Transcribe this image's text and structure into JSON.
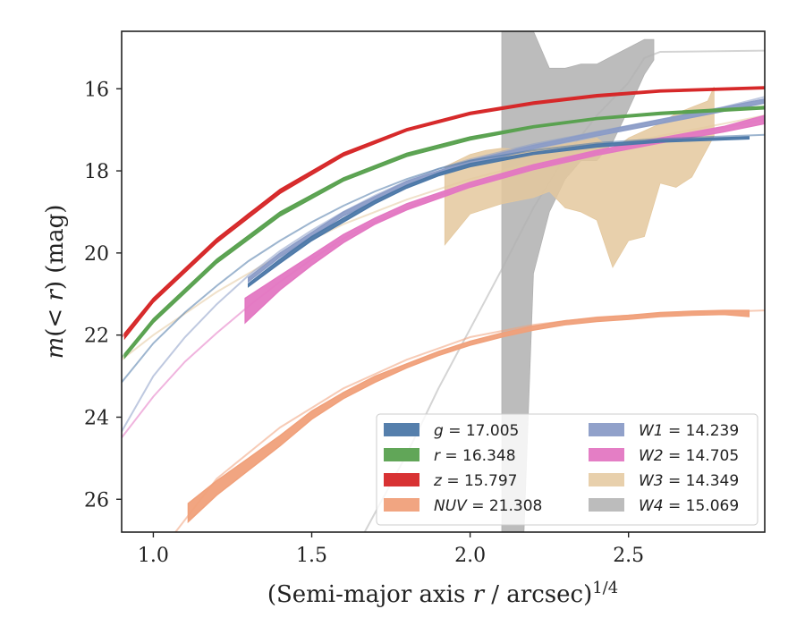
{
  "chart_data": {
    "type": "line",
    "title": "",
    "xlabel": "(Semi-major axis r / arcsec)",
    "xlabel_parts": {
      "pre": "(Semi-major axis ",
      "var": "r",
      "post": " / arcsec)",
      "sup": "1/4"
    },
    "ylabel": "m(< r) (mag)",
    "ylabel_parts": {
      "m": "m",
      "open": "(",
      "lt": "< ",
      "r": "r",
      "close": ")",
      "unit": " (mag)"
    },
    "xlim": [
      0.9,
      2.93
    ],
    "ylim": [
      26.8,
      14.6
    ],
    "y_inverted": true,
    "xticks": [
      1.0,
      1.5,
      2.0,
      2.5
    ],
    "xtick_labels": [
      "1.0",
      "1.5",
      "2.0",
      "2.5"
    ],
    "yticks": [
      16,
      18,
      20,
      22,
      24,
      26
    ],
    "ytick_labels": [
      "16",
      "18",
      "20",
      "22",
      "24",
      "26"
    ],
    "grid": false,
    "legend_position": "lower-right",
    "legend_columns": 2,
    "series": [
      {
        "name": "g = 17.005",
        "var": "g",
        "value": "17.005",
        "color": "#4c78a8",
        "model": [
          [
            0.9,
            23.15
          ],
          [
            1.0,
            22.2
          ],
          [
            1.1,
            21.45
          ],
          [
            1.2,
            20.8
          ],
          [
            1.3,
            20.2
          ],
          [
            1.4,
            19.7
          ],
          [
            1.5,
            19.25
          ],
          [
            1.6,
            18.85
          ],
          [
            1.7,
            18.5
          ],
          [
            1.8,
            18.2
          ],
          [
            1.9,
            17.95
          ],
          [
            2.0,
            17.75
          ],
          [
            2.2,
            17.5
          ],
          [
            2.4,
            17.32
          ],
          [
            2.6,
            17.22
          ],
          [
            2.93,
            17.12
          ]
        ],
        "band": [
          [
            1.3,
            20.75,
            20.82
          ],
          [
            1.4,
            20.15,
            20.25
          ],
          [
            1.5,
            19.6,
            19.7
          ],
          [
            1.6,
            19.15,
            19.25
          ],
          [
            1.7,
            18.72,
            18.8
          ],
          [
            1.8,
            18.35,
            18.42
          ],
          [
            1.9,
            18.05,
            18.12
          ],
          [
            2.0,
            17.82,
            17.9
          ],
          [
            2.2,
            17.55,
            17.6
          ],
          [
            2.4,
            17.35,
            17.42
          ],
          [
            2.6,
            17.25,
            17.3
          ],
          [
            2.88,
            17.17,
            17.22
          ]
        ]
      },
      {
        "name": "r = 16.348",
        "var": "r",
        "value": "16.348",
        "color": "#59a14f",
        "model": [
          [
            0.9,
            22.55
          ],
          [
            1.0,
            21.65
          ],
          [
            1.1,
            20.9
          ],
          [
            1.2,
            20.2
          ],
          [
            1.3,
            19.6
          ],
          [
            1.4,
            19.05
          ],
          [
            1.5,
            18.6
          ],
          [
            1.6,
            18.2
          ],
          [
            1.7,
            17.88
          ],
          [
            1.8,
            17.6
          ],
          [
            1.9,
            17.38
          ],
          [
            2.0,
            17.2
          ],
          [
            2.2,
            16.92
          ],
          [
            2.4,
            16.72
          ],
          [
            2.6,
            16.6
          ],
          [
            2.93,
            16.45
          ]
        ],
        "band": [
          [
            0.91,
            22.45,
            22.55
          ],
          [
            1.0,
            21.6,
            21.7
          ],
          [
            1.2,
            20.15,
            20.25
          ],
          [
            1.4,
            19.0,
            19.1
          ],
          [
            1.6,
            18.17,
            18.25
          ],
          [
            1.8,
            17.57,
            17.65
          ],
          [
            2.0,
            17.17,
            17.25
          ],
          [
            2.2,
            16.9,
            16.95
          ],
          [
            2.4,
            16.7,
            16.75
          ],
          [
            2.6,
            16.57,
            16.63
          ],
          [
            2.93,
            16.43,
            16.49
          ]
        ]
      },
      {
        "name": "z = 15.797",
        "var": "z",
        "value": "15.797",
        "color": "#d62728",
        "model": [
          [
            0.9,
            22.05
          ],
          [
            1.0,
            21.15
          ],
          [
            1.1,
            20.4
          ],
          [
            1.2,
            19.7
          ],
          [
            1.3,
            19.05
          ],
          [
            1.4,
            18.5
          ],
          [
            1.5,
            18.02
          ],
          [
            1.6,
            17.6
          ],
          [
            1.7,
            17.28
          ],
          [
            1.8,
            17.0
          ],
          [
            1.9,
            16.78
          ],
          [
            2.0,
            16.6
          ],
          [
            2.2,
            16.35
          ],
          [
            2.4,
            16.17
          ],
          [
            2.6,
            16.05
          ],
          [
            2.93,
            15.97
          ]
        ],
        "band": [
          [
            0.91,
            21.95,
            22.08
          ],
          [
            1.0,
            21.1,
            21.2
          ],
          [
            1.2,
            19.65,
            19.75
          ],
          [
            1.4,
            18.45,
            18.55
          ],
          [
            1.6,
            17.56,
            17.64
          ],
          [
            1.8,
            16.97,
            17.03
          ],
          [
            2.0,
            16.57,
            16.63
          ],
          [
            2.2,
            16.32,
            16.38
          ],
          [
            2.4,
            16.14,
            16.2
          ],
          [
            2.6,
            16.03,
            16.08
          ],
          [
            2.93,
            15.95,
            16.0
          ]
        ]
      },
      {
        "name": "NUV = 21.308",
        "var": "NUV",
        "value": "21.308",
        "color": "#f0a07a",
        "model": [
          [
            1.0,
            27.5
          ],
          [
            1.2,
            25.5
          ],
          [
            1.4,
            24.25
          ],
          [
            1.6,
            23.3
          ],
          [
            1.8,
            22.6
          ],
          [
            2.0,
            22.05
          ],
          [
            2.2,
            21.75
          ],
          [
            2.4,
            21.57
          ],
          [
            2.6,
            21.48
          ],
          [
            2.93,
            21.4
          ]
        ],
        "band": [
          [
            1.11,
            26.1,
            26.55
          ],
          [
            1.2,
            25.55,
            25.9
          ],
          [
            1.3,
            25.0,
            25.3
          ],
          [
            1.4,
            24.45,
            24.7
          ],
          [
            1.5,
            23.85,
            24.05
          ],
          [
            1.6,
            23.4,
            23.55
          ],
          [
            1.7,
            23.0,
            23.15
          ],
          [
            1.8,
            22.7,
            22.8
          ],
          [
            1.9,
            22.4,
            22.5
          ],
          [
            2.0,
            22.15,
            22.25
          ],
          [
            2.1,
            21.95,
            22.05
          ],
          [
            2.2,
            21.78,
            21.88
          ],
          [
            2.3,
            21.65,
            21.75
          ],
          [
            2.4,
            21.57,
            21.67
          ],
          [
            2.5,
            21.52,
            21.62
          ],
          [
            2.6,
            21.45,
            21.55
          ],
          [
            2.7,
            21.42,
            21.52
          ],
          [
            2.8,
            21.4,
            21.5
          ],
          [
            2.88,
            21.4,
            21.55
          ]
        ]
      },
      {
        "name": "W1 = 14.239",
        "var": "W1",
        "value": "14.239",
        "color": "#8b9cc7",
        "model": [
          [
            0.9,
            24.35
          ],
          [
            1.0,
            23.0
          ],
          [
            1.1,
            22.05
          ],
          [
            1.2,
            21.25
          ],
          [
            1.3,
            20.55
          ],
          [
            1.4,
            19.95
          ],
          [
            1.5,
            19.45
          ],
          [
            1.6,
            19.0
          ],
          [
            1.7,
            18.6
          ],
          [
            1.8,
            18.25
          ],
          [
            1.9,
            17.95
          ],
          [
            2.0,
            17.72
          ],
          [
            2.2,
            17.35
          ],
          [
            2.4,
            17.05
          ],
          [
            2.6,
            16.75
          ],
          [
            2.8,
            16.45
          ],
          [
            2.93,
            16.2
          ]
        ],
        "band": [
          [
            1.3,
            20.6,
            20.7
          ],
          [
            1.4,
            20.0,
            20.1
          ],
          [
            1.6,
            19.0,
            19.1
          ],
          [
            1.8,
            18.25,
            18.35
          ],
          [
            2.0,
            17.75,
            17.85
          ],
          [
            2.2,
            17.38,
            17.46
          ],
          [
            2.4,
            17.05,
            17.15
          ],
          [
            2.6,
            16.75,
            16.85
          ],
          [
            2.8,
            16.45,
            16.55
          ],
          [
            2.93,
            16.25,
            16.35
          ]
        ]
      },
      {
        "name": "W2 = 14.705",
        "var": "W2",
        "value": "14.705",
        "color": "#e377c2",
        "model": [
          [
            0.9,
            24.5
          ],
          [
            1.0,
            23.5
          ],
          [
            1.1,
            22.65
          ],
          [
            1.2,
            21.95
          ],
          [
            1.3,
            21.3
          ],
          [
            1.4,
            20.7
          ],
          [
            1.5,
            20.15
          ],
          [
            1.6,
            19.65
          ],
          [
            1.7,
            19.25
          ],
          [
            1.8,
            18.9
          ],
          [
            1.9,
            18.6
          ],
          [
            2.0,
            18.35
          ],
          [
            2.2,
            17.9
          ],
          [
            2.4,
            17.55
          ],
          [
            2.6,
            17.25
          ],
          [
            2.8,
            16.95
          ],
          [
            2.93,
            16.75
          ]
        ],
        "band": [
          [
            1.29,
            21.1,
            21.7
          ],
          [
            1.4,
            20.55,
            20.9
          ],
          [
            1.5,
            20.05,
            20.3
          ],
          [
            1.6,
            19.55,
            19.75
          ],
          [
            1.7,
            19.15,
            19.3
          ],
          [
            1.8,
            18.8,
            18.95
          ],
          [
            2.0,
            18.28,
            18.4
          ],
          [
            2.2,
            17.85,
            17.97
          ],
          [
            2.4,
            17.5,
            17.62
          ],
          [
            2.6,
            17.2,
            17.32
          ],
          [
            2.8,
            16.92,
            17.05
          ],
          [
            2.93,
            16.65,
            16.85
          ]
        ]
      },
      {
        "name": "W3 = 14.349",
        "var": "W3",
        "value": "14.349",
        "color": "#e4c89e",
        "model": [
          [
            0.9,
            22.6
          ],
          [
            1.0,
            22.0
          ],
          [
            1.2,
            20.95
          ],
          [
            1.4,
            20.05
          ],
          [
            1.6,
            19.3
          ],
          [
            1.8,
            18.7
          ],
          [
            2.0,
            18.2
          ],
          [
            2.2,
            17.8
          ],
          [
            2.4,
            17.45
          ],
          [
            2.6,
            17.15
          ],
          [
            2.8,
            16.85
          ],
          [
            2.93,
            16.65
          ]
        ],
        "upper": [
          [
            1.92,
            17.9
          ],
          [
            2.0,
            17.6
          ],
          [
            2.05,
            17.5
          ],
          [
            2.1,
            17.45
          ],
          [
            2.2,
            17.5
          ],
          [
            2.3,
            17.35
          ],
          [
            2.4,
            17.2
          ],
          [
            2.45,
            17.5
          ],
          [
            2.5,
            17.2
          ],
          [
            2.6,
            16.85
          ],
          [
            2.65,
            16.6
          ],
          [
            2.7,
            16.45
          ],
          [
            2.75,
            16.3
          ],
          [
            2.77,
            15.95
          ]
        ],
        "lower": [
          [
            1.92,
            19.8
          ],
          [
            2.0,
            19.05
          ],
          [
            2.1,
            18.8
          ],
          [
            2.2,
            18.65
          ],
          [
            2.25,
            18.5
          ],
          [
            2.3,
            18.9
          ],
          [
            2.35,
            19.0
          ],
          [
            2.4,
            19.2
          ],
          [
            2.45,
            20.35
          ],
          [
            2.5,
            19.7
          ],
          [
            2.55,
            19.6
          ],
          [
            2.6,
            18.3
          ],
          [
            2.65,
            18.4
          ],
          [
            2.7,
            18.15
          ],
          [
            2.77,
            17.15
          ]
        ]
      },
      {
        "name": "W4 = 15.069",
        "var": "W4",
        "value": "15.069",
        "color": "#b0b0b0",
        "model": [
          [
            1.66,
            26.9
          ],
          [
            1.8,
            24.9
          ],
          [
            1.9,
            23.3
          ],
          [
            2.0,
            21.85
          ],
          [
            2.1,
            20.4
          ],
          [
            2.2,
            18.9
          ],
          [
            2.3,
            17.65
          ],
          [
            2.4,
            16.65
          ],
          [
            2.5,
            15.85
          ],
          [
            2.55,
            15.25
          ],
          [
            2.6,
            15.1
          ],
          [
            2.93,
            15.07
          ]
        ],
        "upper": [
          [
            2.1,
            14.6
          ],
          [
            2.17,
            14.6
          ],
          [
            2.2,
            14.6
          ],
          [
            2.25,
            15.5
          ],
          [
            2.3,
            15.5
          ],
          [
            2.35,
            15.4
          ],
          [
            2.4,
            15.4
          ],
          [
            2.45,
            15.2
          ],
          [
            2.5,
            15.0
          ],
          [
            2.55,
            14.8
          ],
          [
            2.58,
            14.8
          ]
        ],
        "lower": [
          [
            2.1,
            26.8
          ],
          [
            2.17,
            26.8
          ],
          [
            2.2,
            20.5
          ],
          [
            2.25,
            19.0
          ],
          [
            2.3,
            18.2
          ],
          [
            2.35,
            17.75
          ],
          [
            2.4,
            17.75
          ],
          [
            2.45,
            17.3
          ],
          [
            2.5,
            16.5
          ],
          [
            2.55,
            15.65
          ],
          [
            2.58,
            15.3
          ]
        ]
      }
    ]
  }
}
